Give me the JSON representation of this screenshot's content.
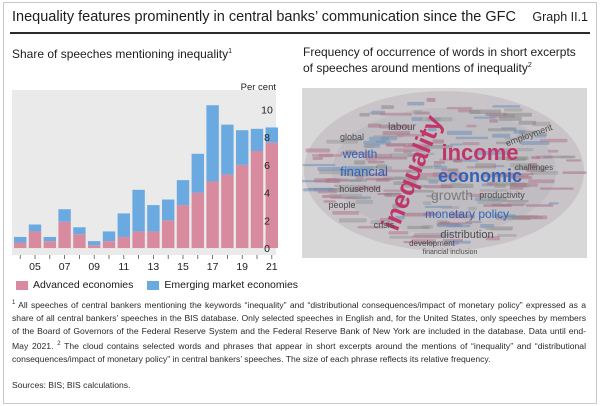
{
  "header": {
    "title": "Inequality features prominently in central banks’ communication since the GFC",
    "graph_label": "Graph II.1"
  },
  "left_panel": {
    "title": "Share of speeches mentioning inequality",
    "title_note": "1"
  },
  "right_panel": {
    "title": "Frequency of occurrence of words in short excerpts of speeches around mentions of inequality",
    "title_note": "2",
    "cloud_words": [
      {
        "text": "income",
        "color": "#c0356a",
        "style": "big"
      },
      {
        "text": "inequality",
        "color": "#c0356a",
        "style": "vertical"
      },
      {
        "text": "economic",
        "color": "#2f63b8",
        "style": "big"
      },
      {
        "text": "growth",
        "color": "#7a7a7a",
        "style": "mid"
      },
      {
        "text": "monetary policy",
        "color": "#2f63b8",
        "style": "mid"
      },
      {
        "text": "wealth",
        "color": "#2f63b8",
        "style": "mid"
      },
      {
        "text": "financial",
        "color": "#2f63b8",
        "style": "mid"
      },
      {
        "text": "distribution",
        "color": "#4a4a4a",
        "style": "mid"
      },
      {
        "text": "household",
        "color": "#4a4a4a",
        "style": "small"
      },
      {
        "text": "labour",
        "color": "#4a4a4a",
        "style": "small"
      },
      {
        "text": "global",
        "color": "#4a4a4a",
        "style": "small"
      },
      {
        "text": "employment",
        "color": "#4a4a4a",
        "style": "small"
      },
      {
        "text": "people",
        "color": "#4a4a4a",
        "style": "small"
      },
      {
        "text": "productivity",
        "color": "#4a4a4a",
        "style": "small"
      },
      {
        "text": "development",
        "color": "#4a4a4a",
        "style": "small"
      },
      {
        "text": "challenges",
        "color": "#4a4a4a",
        "style": "small"
      },
      {
        "text": "crisis",
        "color": "#4a4a4a",
        "style": "small"
      },
      {
        "text": "financial inclusion",
        "color": "#4a4a4a",
        "style": "small"
      }
    ]
  },
  "legend": {
    "advanced": "Advanced economies",
    "emerging": "Emerging market economies"
  },
  "colors": {
    "advanced": "#d88a9f",
    "emerging": "#6aaae0",
    "plot_bg": "#eaeaea",
    "cloud_bg": "#d4d4d4"
  },
  "chart_data": {
    "type": "bar",
    "stacked": true,
    "unit_label": "Per cent",
    "categories": [
      "04",
      "05",
      "06",
      "07",
      "08",
      "09",
      "10",
      "11",
      "12",
      "13",
      "14",
      "15",
      "16",
      "17",
      "18",
      "19",
      "20",
      "21"
    ],
    "x_tick_labels": [
      "05",
      "07",
      "09",
      "11",
      "13",
      "15",
      "17",
      "19",
      "21"
    ],
    "series": [
      {
        "name": "Advanced economies",
        "values": [
          0.4,
          1.2,
          0.5,
          1.9,
          1.0,
          0.2,
          0.5,
          0.8,
          1.2,
          1.2,
          2.0,
          3.1,
          4.0,
          4.8,
          5.3,
          6.0,
          7.0,
          7.6
        ]
      },
      {
        "name": "Emerging market economies",
        "values": [
          0.4,
          0.5,
          0.3,
          0.9,
          0.5,
          0.3,
          0.7,
          1.7,
          3.0,
          1.9,
          1.5,
          1.8,
          2.8,
          5.5,
          3.6,
          2.5,
          1.6,
          1.1
        ]
      }
    ],
    "y_ticks": [
      0,
      2,
      4,
      6,
      8,
      10
    ],
    "ylim": [
      -0.5,
      11.4
    ],
    "grid": false
  },
  "notes": {
    "n1": "1",
    "n1_text": "All speeches of central bankers mentioning the keywords “inequality” and “distributional consequences/impact of monetary policy” expressed as a share of all central bankers’ speeches in the BIS database. Only selected speeches in English and, for the United States, only speeches by members of the Board of Governors of the Federal Reserve System and the Federal Reserve Bank of New York are included in the database. Data until end-May 2021.",
    "n2": "2",
    "n2_text": "The cloud contains selected words and phrases that appear in short excerpts around the mentions of “inequality” and “distributional consequences/impact of monetary policy” in central bankers’ speeches. The size of each phrase reflects its relative frequency.",
    "sources": "Sources: BIS; BIS calculations."
  }
}
